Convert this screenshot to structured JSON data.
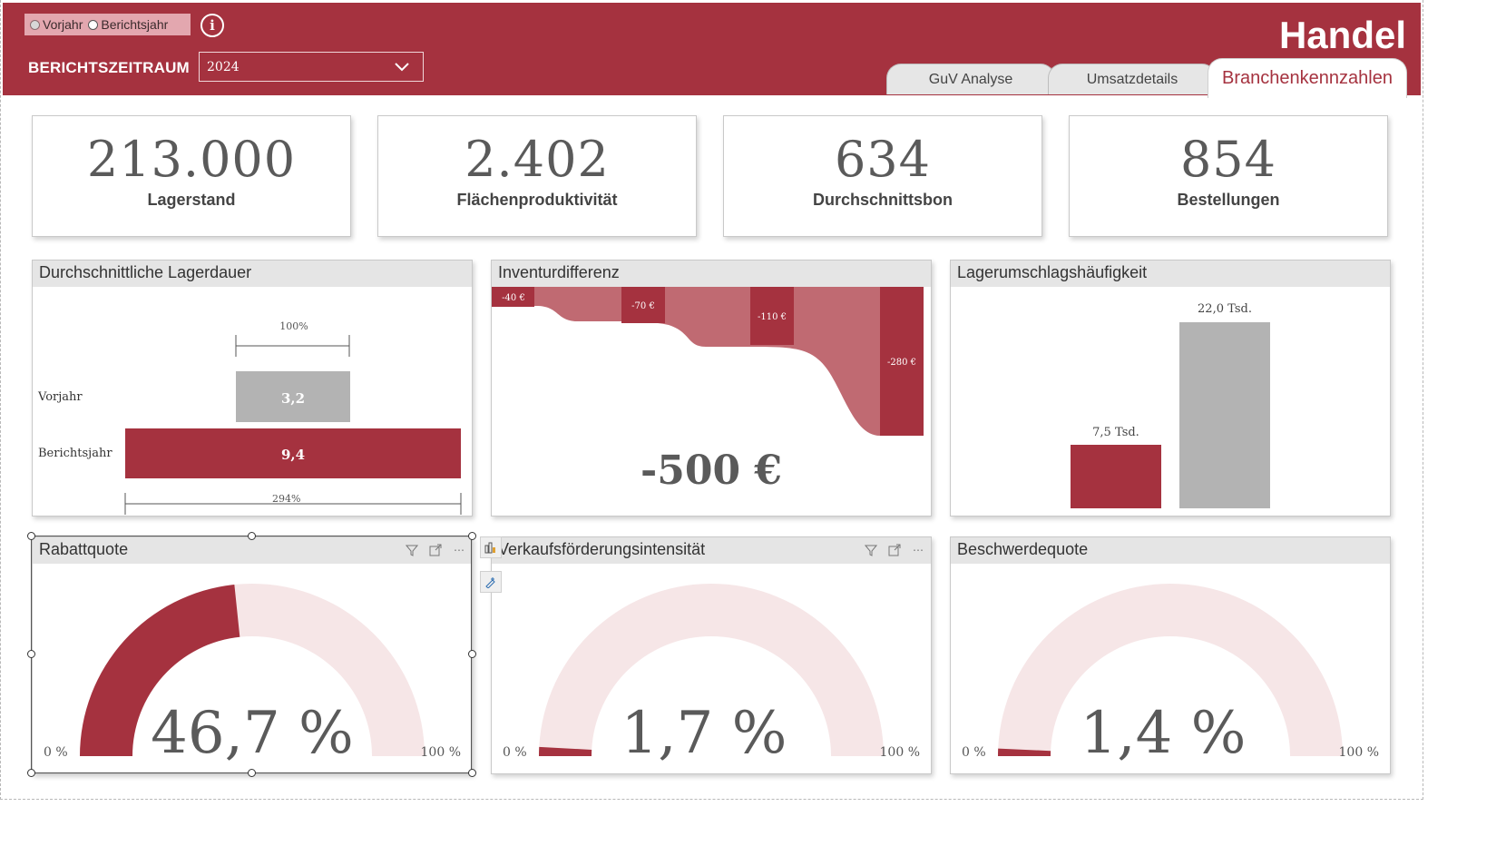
{
  "header": {
    "toggle": [
      "Vorjahr",
      "Berichtsjahr"
    ],
    "period_label": "BERICHTSZEITRAUM",
    "period_value": "2024",
    "title": "Handel",
    "tabs": [
      "GuV Analyse",
      "Umsatzdetails",
      "Branchenkennzahlen"
    ],
    "active_tab": "Branchenkennzahlen"
  },
  "kpis": [
    {
      "value": "213.000",
      "label": "Lagerstand"
    },
    {
      "value": "2.402",
      "label": "Flächenproduktivität"
    },
    {
      "value": "634",
      "label": "Durchschnittsbon"
    },
    {
      "value": "854",
      "label": "Bestellungen"
    }
  ],
  "lagerdauer": {
    "title": "Durchschnittliche Lagerdauer",
    "rows": [
      "Vorjahr",
      "Berichtsjahr"
    ],
    "values_label": [
      "3,2",
      "9,4"
    ],
    "pct_top": "100%",
    "pct_bottom": "294%"
  },
  "inventur": {
    "title": "Inventurdifferenz",
    "steps": [
      "-40 €",
      "-70 €",
      "-110 €",
      "-280 €"
    ],
    "total": "-500 €"
  },
  "lagerumschlag": {
    "title": "Lagerumschlagshäufigkeit",
    "labels": [
      "7,5 Tsd.",
      "22,0 Tsd."
    ]
  },
  "gauges": [
    {
      "title": "Rabattquote",
      "value": "46,7 %",
      "min": "0 %",
      "max": "100 %"
    },
    {
      "title": "Verkaufsförderungsintensität",
      "value": "1,7 %",
      "min": "0 %",
      "max": "100 %"
    },
    {
      "title": "Beschwerdequote",
      "value": "1,4 %",
      "min": "0 %",
      "max": "100 %"
    }
  ],
  "chart_data": [
    {
      "type": "bar",
      "title": "Durchschnittliche Lagerdauer",
      "categories": [
        "Vorjahr",
        "Berichtsjahr"
      ],
      "values": [
        3.2,
        9.4
      ]
    },
    {
      "type": "bar",
      "title": "Inventurdifferenz",
      "categories": [
        "-40 €",
        "-70 €",
        "-110 €",
        "-280 €"
      ],
      "values": [
        -40,
        -70,
        -110,
        -280
      ],
      "total": -500
    },
    {
      "type": "bar",
      "title": "Lagerumschlagshäufigkeit",
      "values": [
        7500,
        22000
      ]
    },
    {
      "type": "gauge",
      "title": "Rabattquote",
      "value": 46.7,
      "range": [
        0,
        100
      ]
    },
    {
      "type": "gauge",
      "title": "Verkaufsförderungsintensität",
      "value": 1.7,
      "range": [
        0,
        100
      ]
    },
    {
      "type": "gauge",
      "title": "Beschwerdequote",
      "value": 1.4,
      "range": [
        0,
        100
      ]
    }
  ],
  "colors": {
    "accent": "#a5323f",
    "light_accent": "#c06a72",
    "gauge_bg": "#f6e6e7",
    "grey": "#b3b3b3"
  }
}
